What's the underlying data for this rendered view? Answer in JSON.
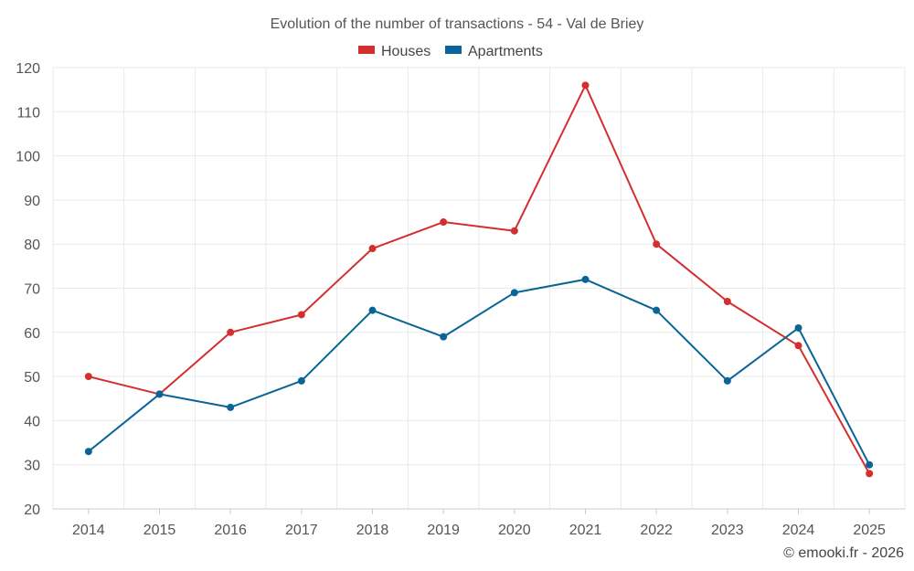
{
  "chart_data": {
    "type": "line",
    "title": "Evolution of the number of transactions - 54 - Val de Briey",
    "categories": [
      "2014",
      "2015",
      "2016",
      "2017",
      "2018",
      "2019",
      "2020",
      "2021",
      "2022",
      "2023",
      "2024",
      "2025"
    ],
    "series": [
      {
        "name": "Houses",
        "color": "#d32f2f",
        "values": [
          50,
          46,
          60,
          64,
          79,
          85,
          83,
          116,
          80,
          67,
          57,
          28
        ]
      },
      {
        "name": "Apartments",
        "color": "#0a6496",
        "values": [
          33,
          46,
          43,
          49,
          65,
          59,
          69,
          72,
          65,
          49,
          61,
          30
        ]
      }
    ],
    "ylim": [
      20,
      120
    ],
    "yticks": [
      20,
      30,
      40,
      50,
      60,
      70,
      80,
      90,
      100,
      110,
      120
    ],
    "grid": true,
    "legend": "top-center",
    "xlabel": "",
    "ylabel": ""
  },
  "credit": "© emooki.fr - 2026"
}
